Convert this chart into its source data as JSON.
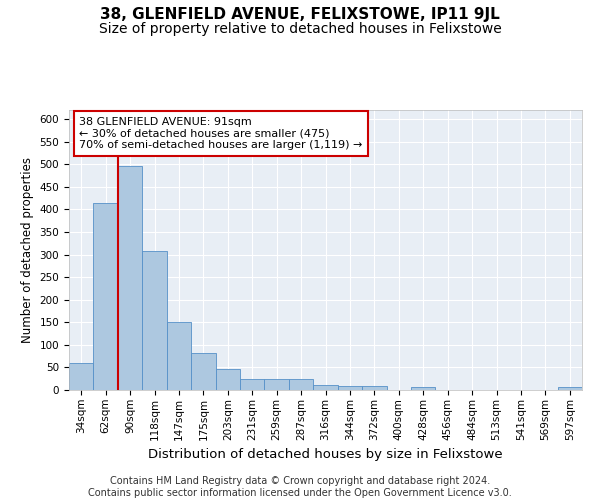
{
  "title": "38, GLENFIELD AVENUE, FELIXSTOWE, IP11 9JL",
  "subtitle": "Size of property relative to detached houses in Felixstowe",
  "xlabel": "Distribution of detached houses by size in Felixstowe",
  "ylabel": "Number of detached properties",
  "categories": [
    "34sqm",
    "62sqm",
    "90sqm",
    "118sqm",
    "147sqm",
    "175sqm",
    "203sqm",
    "231sqm",
    "259sqm",
    "287sqm",
    "316sqm",
    "344sqm",
    "372sqm",
    "400sqm",
    "428sqm",
    "456sqm",
    "484sqm",
    "513sqm",
    "541sqm",
    "569sqm",
    "597sqm"
  ],
  "values": [
    60,
    413,
    495,
    307,
    151,
    83,
    46,
    25,
    25,
    25,
    10,
    8,
    8,
    0,
    6,
    0,
    0,
    0,
    0,
    0,
    6
  ],
  "bar_color": "#adc8e0",
  "bar_edgecolor": "#5590c8",
  "vline_color": "#cc0000",
  "vline_x_index": 2,
  "annotation_text": "38 GLENFIELD AVENUE: 91sqm\n← 30% of detached houses are smaller (475)\n70% of semi-detached houses are larger (1,119) →",
  "annotation_box_facecolor": "#ffffff",
  "annotation_box_edgecolor": "#cc0000",
  "ylim": [
    0,
    620
  ],
  "yticks": [
    0,
    50,
    100,
    150,
    200,
    250,
    300,
    350,
    400,
    450,
    500,
    550,
    600
  ],
  "fig_facecolor": "#ffffff",
  "plot_facecolor": "#e8eef5",
  "grid_color": "#ffffff",
  "title_fontsize": 11,
  "subtitle_fontsize": 10,
  "xlabel_fontsize": 9.5,
  "ylabel_fontsize": 8.5,
  "annot_fontsize": 8,
  "tick_fontsize": 7.5,
  "footer_fontsize": 7,
  "footer_text": "Contains HM Land Registry data © Crown copyright and database right 2024.\nContains public sector information licensed under the Open Government Licence v3.0."
}
